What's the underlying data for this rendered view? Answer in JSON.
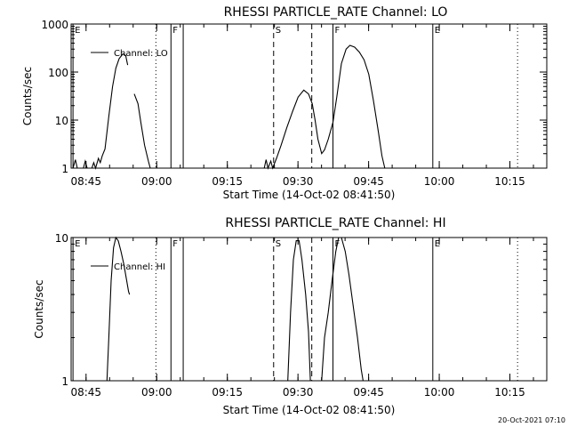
{
  "footer_stamp": "20-Oct-2021 07:10",
  "chart_data": [
    {
      "type": "line",
      "title": "RHESSI PARTICLE_RATE Channel: LO",
      "xlabel": "Start Time (14-Oct-02 08:41:50)",
      "ylabel": "Counts/sec",
      "scale_y": "log",
      "x_unit": "minutes after 08:41:50",
      "xlim": [
        0,
        101
      ],
      "ylim": [
        1,
        1000
      ],
      "x_ticks": [
        {
          "label": "08:45",
          "x": 3.17
        },
        {
          "label": "09:00",
          "x": 18.17
        },
        {
          "label": "09:15",
          "x": 33.17
        },
        {
          "label": "09:30",
          "x": 48.17
        },
        {
          "label": "09:45",
          "x": 63.17
        },
        {
          "label": "10:00",
          "x": 78.17
        },
        {
          "label": "10:15",
          "x": 93.17
        }
      ],
      "y_ticks": [
        {
          "label": "1",
          "y": 1
        },
        {
          "label": "10",
          "y": 10
        },
        {
          "label": "100",
          "y": 100
        },
        {
          "label": "1000",
          "y": 1000
        }
      ],
      "legend": {
        "text": "Channel: LO",
        "position": "top-left"
      },
      "grid": false,
      "markers": [
        {
          "x": 0.4,
          "style": "solid",
          "label": "E"
        },
        {
          "x": 18.0,
          "style": "dotted",
          "label": ""
        },
        {
          "x": 21.2,
          "style": "solid",
          "label": "F"
        },
        {
          "x": 23.8,
          "style": "solid",
          "label": ""
        },
        {
          "x": 43.0,
          "style": "dashed",
          "label": "S"
        },
        {
          "x": 51.1,
          "style": "dashed",
          "label": ""
        },
        {
          "x": 55.6,
          "style": "solid",
          "label": "F"
        },
        {
          "x": 76.8,
          "style": "solid",
          "label": "E"
        },
        {
          "x": 94.8,
          "style": "dotted",
          "label": ""
        }
      ],
      "series": [
        {
          "segments": [
            [
              [
                0.4,
                1
              ],
              [
                0.9,
                1.5
              ],
              [
                1.3,
                1
              ],
              [
                2.6,
                1
              ],
              [
                3.0,
                1.4
              ],
              [
                3.4,
                1
              ],
              [
                4.4,
                1
              ],
              [
                4.8,
                1.3
              ],
              [
                5.2,
                1
              ],
              [
                5.8,
                1.6
              ],
              [
                6.2,
                1.3
              ],
              [
                6.6,
                1.8
              ],
              [
                7.2,
                2.5
              ],
              [
                8.0,
                12
              ],
              [
                8.8,
                50
              ],
              [
                9.5,
                120
              ],
              [
                10.2,
                190
              ],
              [
                11.0,
                240
              ],
              [
                11.6,
                220
              ],
              [
                12.0,
                140
              ]
            ],
            [
              [
                13.4,
                35
              ],
              [
                14.2,
                22
              ],
              [
                14.8,
                9
              ],
              [
                15.6,
                3
              ],
              [
                16.4,
                1.4
              ],
              [
                16.8,
                1
              ]
            ],
            [
              [
                41.0,
                1
              ],
              [
                41.4,
                1.5
              ],
              [
                41.8,
                1
              ],
              [
                42.4,
                1.4
              ],
              [
                42.8,
                1
              ],
              [
                43.6,
                1.6
              ],
              [
                44.6,
                3
              ],
              [
                45.8,
                7
              ],
              [
                47.0,
                15
              ],
              [
                48.2,
                30
              ],
              [
                49.4,
                42
              ],
              [
                50.4,
                35
              ],
              [
                51.2,
                22
              ],
              [
                51.8,
                10
              ],
              [
                52.4,
                4
              ],
              [
                53.2,
                2
              ],
              [
                53.8,
                2.4
              ],
              [
                54.6,
                4
              ],
              [
                55.6,
                9
              ],
              [
                56.4,
                30
              ],
              [
                57.4,
                150
              ],
              [
                58.4,
                300
              ],
              [
                59.2,
                360
              ],
              [
                60.2,
                330
              ],
              [
                61.2,
                260
              ],
              [
                62.2,
                180
              ],
              [
                63.2,
                90
              ],
              [
                64.2,
                25
              ],
              [
                65.2,
                6
              ],
              [
                66.0,
                1.8
              ],
              [
                66.6,
                1
              ]
            ]
          ]
        }
      ]
    },
    {
      "type": "line",
      "title": "RHESSI PARTICLE_RATE Channel: HI",
      "xlabel": "Start Time (14-Oct-02 08:41:50)",
      "ylabel": "Counts/sec",
      "scale_y": "log",
      "x_unit": "minutes after 08:41:50",
      "xlim": [
        0,
        101
      ],
      "ylim": [
        1,
        10
      ],
      "x_ticks": [
        {
          "label": "08:45",
          "x": 3.17
        },
        {
          "label": "09:00",
          "x": 18.17
        },
        {
          "label": "09:15",
          "x": 33.17
        },
        {
          "label": "09:30",
          "x": 48.17
        },
        {
          "label": "09:45",
          "x": 63.17
        },
        {
          "label": "10:00",
          "x": 78.17
        },
        {
          "label": "10:15",
          "x": 93.17
        }
      ],
      "y_ticks": [
        {
          "label": "1",
          "y": 1
        },
        {
          "label": "10",
          "y": 10
        }
      ],
      "legend": {
        "text": "Channel: HI",
        "position": "top-left"
      },
      "grid": false,
      "markers": [
        {
          "x": 0.4,
          "style": "solid",
          "label": "E"
        },
        {
          "x": 18.0,
          "style": "dotted",
          "label": ""
        },
        {
          "x": 21.2,
          "style": "solid",
          "label": "F"
        },
        {
          "x": 23.8,
          "style": "solid",
          "label": ""
        },
        {
          "x": 43.0,
          "style": "dashed",
          "label": "S"
        },
        {
          "x": 51.1,
          "style": "dashed",
          "label": ""
        },
        {
          "x": 55.6,
          "style": "solid",
          "label": "F"
        },
        {
          "x": 76.8,
          "style": "solid",
          "label": "E"
        },
        {
          "x": 94.8,
          "style": "dotted",
          "label": ""
        }
      ],
      "series": [
        {
          "segments": [
            [
              [
                7.6,
                1
              ],
              [
                8.0,
                2
              ],
              [
                8.5,
                5
              ],
              [
                9.0,
                8.5
              ],
              [
                9.5,
                10
              ],
              [
                10.0,
                9.5
              ],
              [
                10.6,
                8
              ],
              [
                11.2,
                6.5
              ],
              [
                11.8,
                5
              ],
              [
                12.2,
                4.2
              ],
              [
                12.4,
                4
              ]
            ],
            [
              [
                46.0,
                1
              ],
              [
                46.6,
                3
              ],
              [
                47.2,
                7
              ],
              [
                47.8,
                9.5
              ],
              [
                48.4,
                9.5
              ],
              [
                49.0,
                7
              ],
              [
                49.8,
                4
              ],
              [
                50.4,
                2.2
              ],
              [
                50.8,
                1
              ]
            ],
            [
              [
                53.2,
                1
              ],
              [
                53.8,
                2
              ],
              [
                54.6,
                3
              ],
              [
                55.4,
                5
              ],
              [
                56.2,
                8
              ],
              [
                56.8,
                10
              ],
              [
                57.4,
                10
              ],
              [
                58.2,
                8
              ],
              [
                59.0,
                5.5
              ],
              [
                59.8,
                3.5
              ],
              [
                60.8,
                2
              ],
              [
                61.6,
                1.2
              ],
              [
                62.0,
                1
              ]
            ]
          ]
        }
      ]
    }
  ]
}
